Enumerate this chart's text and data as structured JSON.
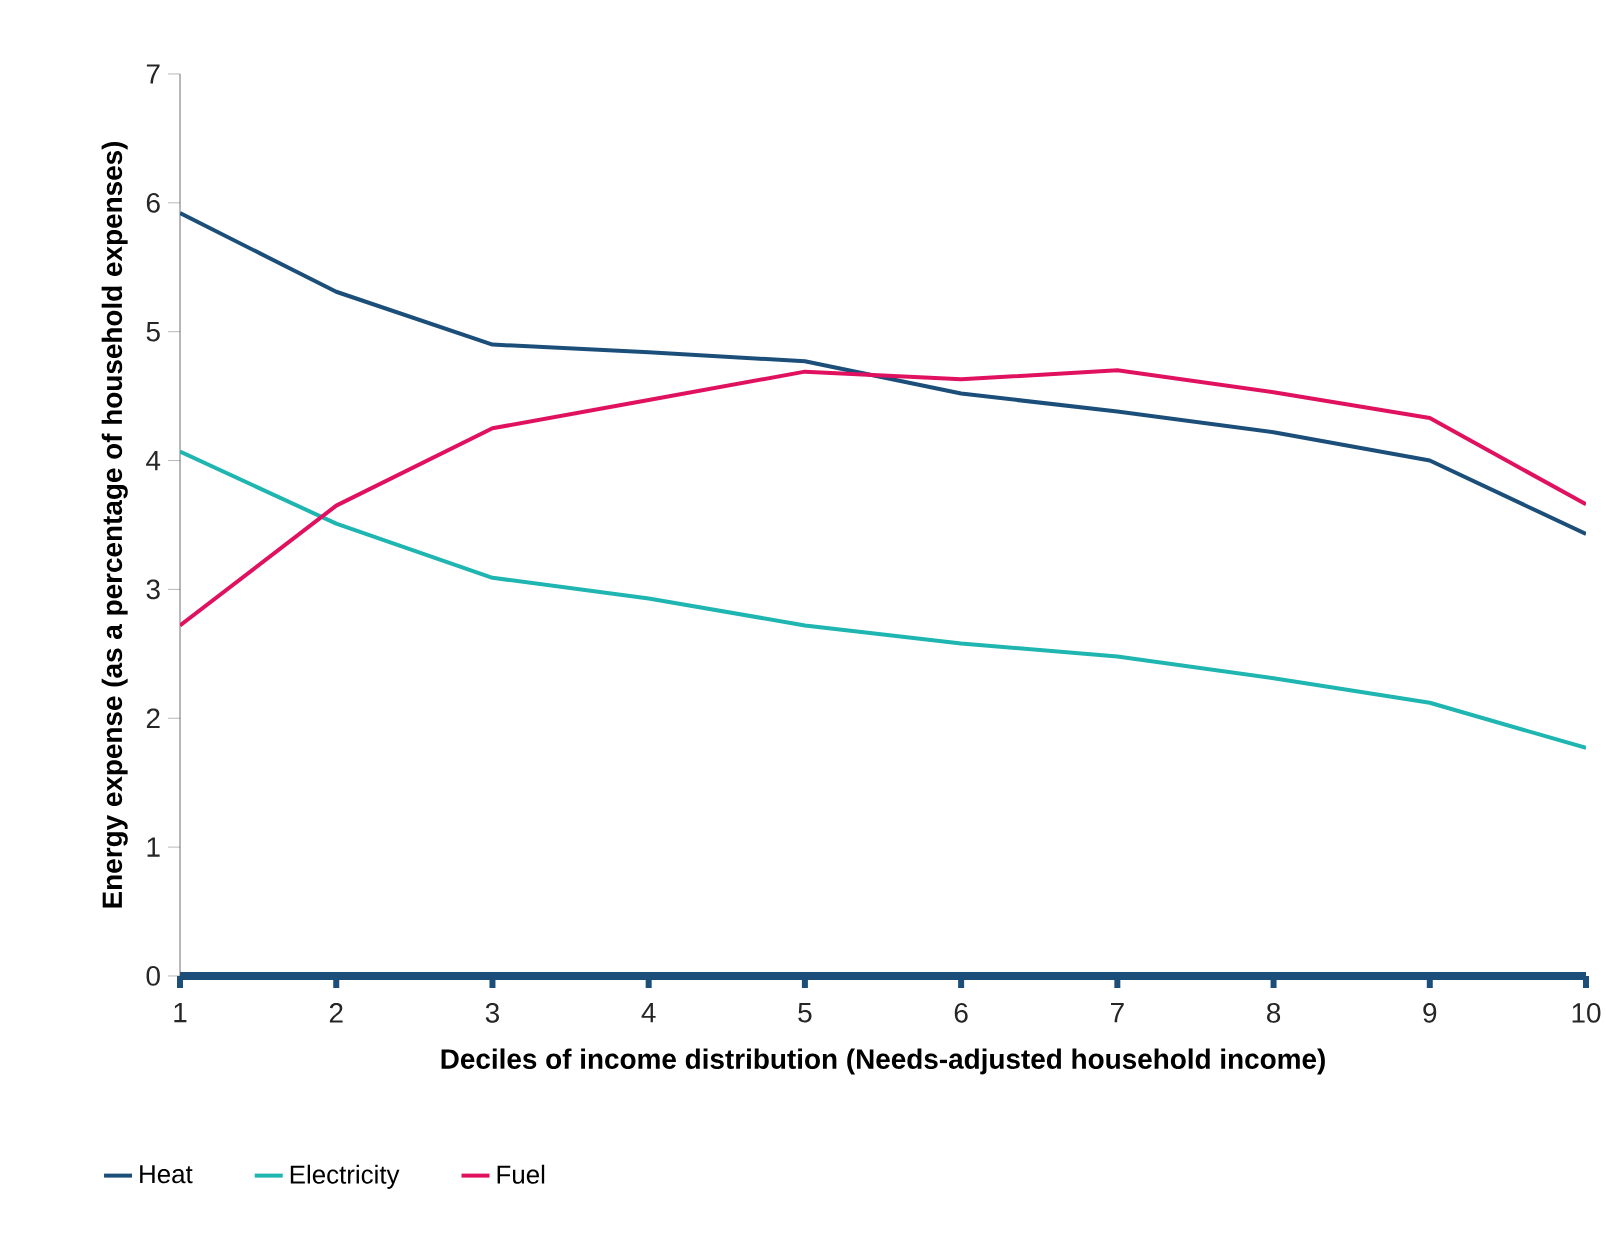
{
  "chart_data": {
    "type": "line",
    "xlabel": "Deciles of income distribution (Needs-adjusted household income)",
    "ylabel": "Energy expense (as a percentage of household expenses)",
    "x": [
      1,
      2,
      3,
      4,
      5,
      6,
      7,
      8,
      9,
      10
    ],
    "xlim": [
      1,
      10
    ],
    "xticks": [
      1,
      2,
      3,
      4,
      5,
      6,
      7,
      8,
      9,
      10
    ],
    "ylim": [
      0,
      7
    ],
    "yticks": [
      0,
      1,
      2,
      3,
      4,
      5,
      6,
      7
    ],
    "grid": false,
    "legend": "bottom left",
    "marker": "none",
    "line_style": "solid",
    "series": [
      {
        "name": "Heat",
        "color": "#1b4f7a",
        "values": [
          5.92,
          5.31,
          4.9,
          4.84,
          4.77,
          4.52,
          4.38,
          4.22,
          4.0,
          3.43
        ]
      },
      {
        "name": "Electricity",
        "color": "#1fb5b0",
        "values": [
          4.07,
          3.51,
          3.09,
          2.93,
          2.72,
          2.58,
          2.48,
          2.31,
          2.12,
          1.77
        ]
      },
      {
        "name": "Fuel",
        "color": "#e0115f",
        "values": [
          2.72,
          3.65,
          4.25,
          4.47,
          4.69,
          4.63,
          4.7,
          4.53,
          4.33,
          3.66
        ]
      }
    ]
  }
}
